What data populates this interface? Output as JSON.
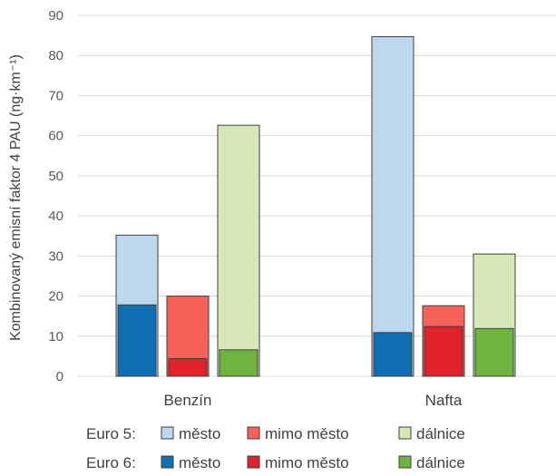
{
  "chart_data": {
    "type": "bar",
    "ylabel": "Kombinovaný emisní faktor 4 PAU (ng·km⁻¹)",
    "ylim": [
      0,
      90
    ],
    "yticks": [
      "0",
      "10",
      "20",
      "30",
      "40",
      "50",
      "60",
      "70",
      "80",
      "90"
    ],
    "grid": true,
    "categories": [
      "Benzín",
      "Nafta"
    ],
    "series_types": [
      "město",
      "mimo město",
      "dálnice"
    ],
    "series": [
      {
        "name": "Euro 5",
        "type": "město",
        "color": "#bdd7ee",
        "values": [
          35.2,
          84.7
        ]
      },
      {
        "name": "Euro 6",
        "type": "město",
        "color": "#0f6fb1",
        "values": [
          17.8,
          10.9
        ]
      },
      {
        "name": "Euro 5",
        "type": "mimo město",
        "color": "#f4625a",
        "values": [
          20.0,
          17.6
        ]
      },
      {
        "name": "Euro 6",
        "type": "mimo město",
        "color": "#e0232b",
        "values": [
          4.4,
          12.4
        ]
      },
      {
        "name": "Euro 5",
        "type": "dálnice",
        "color": "#d5e8b8",
        "values": [
          62.6,
          30.5
        ]
      },
      {
        "name": "Euro 6",
        "type": "dálnice",
        "color": "#6fb43f",
        "values": [
          6.6,
          11.9
        ]
      }
    ],
    "legend": {
      "position": "bottom",
      "rows": [
        {
          "label": "Euro 5:",
          "items": [
            "město",
            "mimo město",
            "dálnice"
          ],
          "colors": [
            "#bdd7ee",
            "#f4625a",
            "#d5e8b8"
          ]
        },
        {
          "label": "Euro 6:",
          "items": [
            "město",
            "mimo město",
            "dálnice"
          ],
          "colors": [
            "#0f6fb1",
            "#e0232b",
            "#6fb43f"
          ]
        }
      ]
    }
  }
}
